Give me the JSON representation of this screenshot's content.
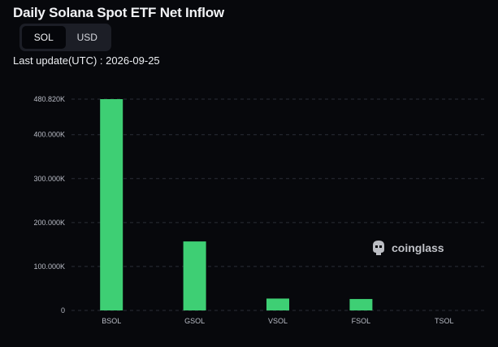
{
  "header": {
    "title": "Daily Solana Spot ETF Net Inflow",
    "last_update": "Last update(UTC) : 2026-09-25"
  },
  "unit_toggle": {
    "options": [
      "SOL",
      "USD"
    ],
    "selected": "SOL"
  },
  "watermark": {
    "text": "coinglass",
    "icon": "coinglass-logo-icon"
  },
  "colors": {
    "bar": "#3ecf74",
    "background": "#07080c",
    "grid": "#2a2d36"
  },
  "chart_data": {
    "type": "bar",
    "categories": [
      "BSOL",
      "GSOL",
      "VSOL",
      "FSOL",
      "TSOL"
    ],
    "values": [
      480820,
      157000,
      27000,
      26000,
      0
    ],
    "ylim": [
      0,
      480820
    ],
    "yticks": [
      0,
      100000,
      200000,
      300000,
      400000,
      480820
    ],
    "ytick_labels": [
      "0",
      "100.000K",
      "200.000K",
      "300.000K",
      "400.000K",
      "480.820K"
    ],
    "grid": true
  }
}
